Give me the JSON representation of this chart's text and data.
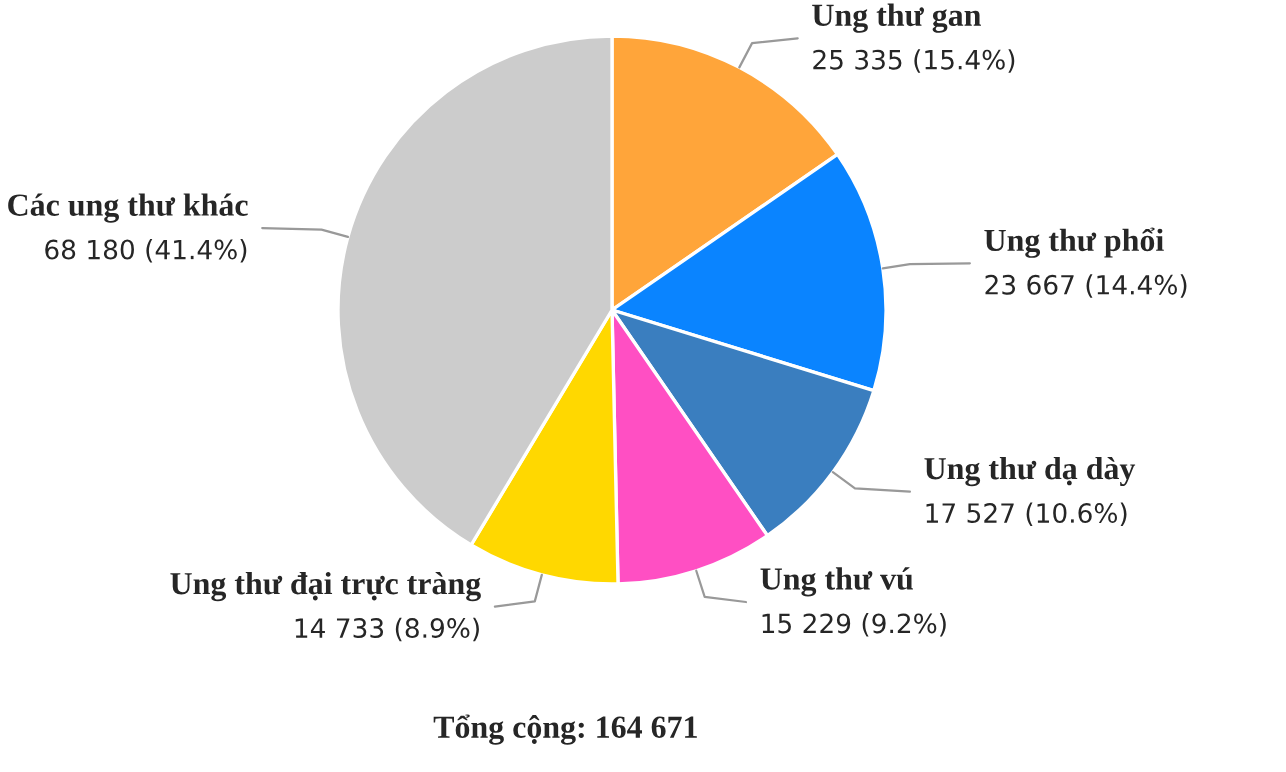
{
  "chart_data": {
    "type": "pie",
    "categories": [
      "Ung thư gan",
      "Ung thư phổi",
      "Ung thư dạ dày",
      "Ung thư vú",
      "Ung thư đại trực tràng",
      "Các ung thư khác"
    ],
    "values": [
      25335,
      23667,
      17527,
      15229,
      14733,
      68180
    ],
    "colors": [
      "#ffa53a",
      "#0a84ff",
      "#3a7ebf",
      "#ff4fc3",
      "#ffd800",
      "#cccccc"
    ],
    "value_labels": [
      "25 335 (15.4%)",
      "23 667 (14.4%)",
      "17 527 (10.6%)",
      "15 229 (9.2%)",
      "14 733 (8.9%)",
      "68 180 (41.4%)"
    ],
    "annotations": [
      "Tổng cộng: 164 671"
    ]
  }
}
